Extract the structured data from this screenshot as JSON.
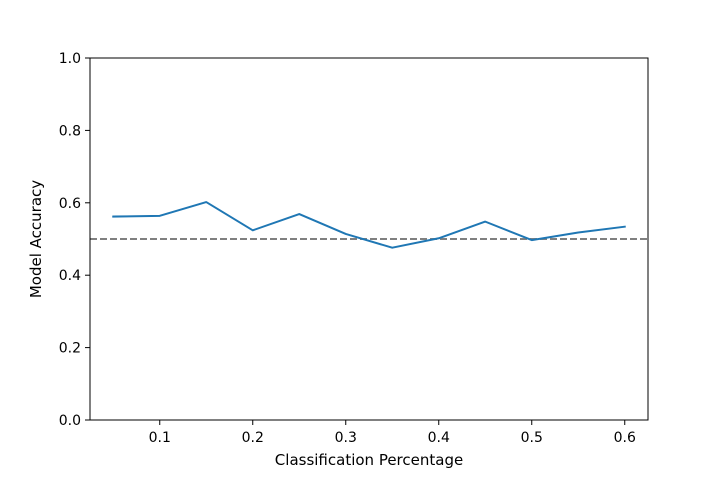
{
  "chart_data": {
    "type": "line",
    "title": "",
    "xlabel": "Classification Percentage",
    "ylabel": "Model Accuracy",
    "xlim": [
      0.025,
      0.625
    ],
    "ylim": [
      0.0,
      1.0
    ],
    "xticks": [
      0.1,
      0.2,
      0.3,
      0.4,
      0.5,
      0.6
    ],
    "xtick_labels": [
      "0.1",
      "0.2",
      "0.3",
      "0.4",
      "0.5",
      "0.6"
    ],
    "yticks": [
      0.0,
      0.2,
      0.4,
      0.6,
      0.8,
      1.0
    ],
    "ytick_labels": [
      "0.0",
      "0.2",
      "0.4",
      "0.6",
      "0.8",
      "1.0"
    ],
    "grid": false,
    "legend": false,
    "series": [
      {
        "color": "#1f77b4",
        "x": [
          0.05,
          0.1,
          0.15,
          0.2,
          0.25,
          0.3,
          0.35,
          0.4,
          0.45,
          0.5,
          0.55,
          0.6
        ],
        "y": [
          0.562,
          0.564,
          0.602,
          0.524,
          0.569,
          0.514,
          0.476,
          0.502,
          0.548,
          0.497,
          0.518,
          0.534
        ]
      }
    ],
    "reference_line": {
      "y": 0.5,
      "style": "dashed",
      "color": "#808080"
    }
  }
}
